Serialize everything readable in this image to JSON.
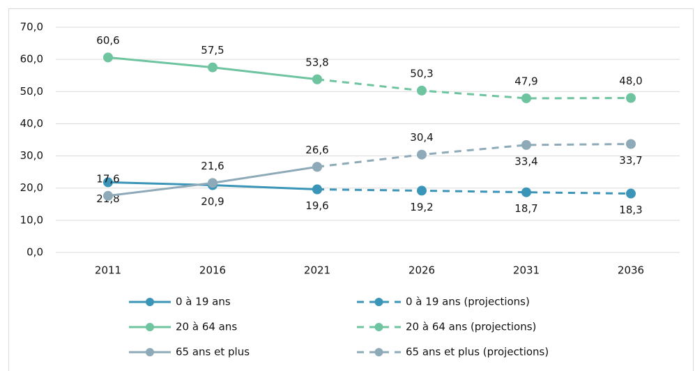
{
  "chart_data": {
    "type": "line",
    "categories": [
      "2011",
      "2016",
      "2021",
      "2026",
      "2031",
      "2036"
    ],
    "ylim": [
      0,
      70
    ],
    "yticks": [
      {
        "value": 0,
        "label": "0,0"
      },
      {
        "value": 10,
        "label": "10,0"
      },
      {
        "value": 20,
        "label": "20,0"
      },
      {
        "value": 30,
        "label": "30,0"
      },
      {
        "value": 40,
        "label": "40,0"
      },
      {
        "value": 50,
        "label": "50,0"
      },
      {
        "value": 60,
        "label": "60,0"
      },
      {
        "value": 70,
        "label": "70,0"
      }
    ],
    "grid": true,
    "series": [
      {
        "name": "0 à 19 ans",
        "color": "#3a95b8",
        "dashed": false,
        "values": [
          21.8,
          20.9,
          19.6,
          null,
          null,
          null
        ],
        "value_labels": [
          "21,8",
          "20,9",
          "19,6",
          null,
          null,
          null
        ]
      },
      {
        "name": "0 à 19 ans (projections)",
        "color": "#3a95b8",
        "dashed": true,
        "values": [
          null,
          null,
          19.6,
          19.2,
          18.7,
          18.3
        ],
        "value_labels": [
          null,
          null,
          null,
          "19,2",
          "18,7",
          "18,3"
        ]
      },
      {
        "name": "20 à 64 ans",
        "color": "#6fc4a0",
        "dashed": false,
        "values": [
          60.6,
          57.5,
          53.8,
          null,
          null,
          null
        ],
        "value_labels": [
          "60,6",
          "57,5",
          "53,8",
          null,
          null,
          null
        ]
      },
      {
        "name": "20 à 64 ans (projections)",
        "color": "#6fc4a0",
        "dashed": true,
        "values": [
          null,
          null,
          53.8,
          50.3,
          47.9,
          48.0
        ],
        "value_labels": [
          null,
          null,
          null,
          "50,3",
          "47,9",
          "48,0"
        ]
      },
      {
        "name": "65 ans et plus",
        "color": "#8eaab8",
        "dashed": false,
        "values": [
          17.6,
          21.6,
          26.6,
          null,
          null,
          null
        ],
        "value_labels": [
          "17,6",
          "21,6",
          "26,6",
          null,
          null,
          null
        ]
      },
      {
        "name": "65 ans et plus (projections)",
        "color": "#8eaab8",
        "dashed": true,
        "values": [
          null,
          null,
          26.6,
          30.4,
          33.4,
          33.7
        ],
        "value_labels": [
          null,
          null,
          null,
          "30,4",
          "33,4",
          "33,7"
        ]
      }
    ]
  }
}
